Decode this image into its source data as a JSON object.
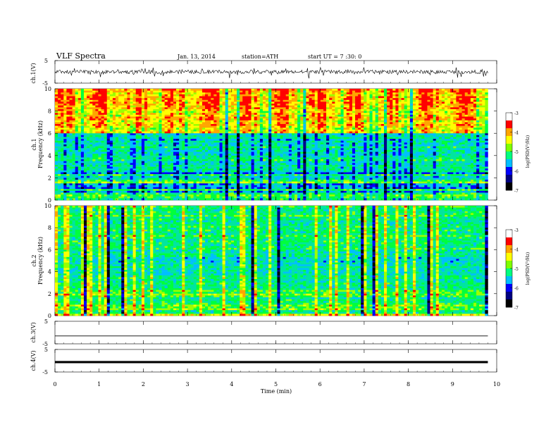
{
  "header": {
    "title": "VLF Spectra",
    "date": "Jan. 13, 2014",
    "station": "station=ATH",
    "start_time": "start UT = 7 :30: 0"
  },
  "colorbar": {
    "label": "log(PSD(V²/Hz)",
    "ticks": [
      "-3",
      "-4",
      "-5",
      "-6",
      "-7"
    ],
    "colors": [
      "#000000",
      "#000080",
      "#0000ff",
      "#00bfff",
      "#00ff7f",
      "#7fff00",
      "#ffff00",
      "#ffa500",
      "#ff0000",
      "#ffffff"
    ]
  },
  "chart_data": [
    {
      "type": "line",
      "panel": "ch1-waveform",
      "ylabel": "ch.1(V)",
      "ylim": [
        -5,
        5
      ],
      "yticks": [
        "5",
        "-5"
      ],
      "description_of_series": "noisy waveform around zero",
      "x": [
        0,
        0.5,
        1,
        1.5,
        2,
        2.5,
        3,
        3.5,
        4,
        4.5,
        5,
        5.5,
        6,
        6.5,
        7,
        7.5,
        8,
        8.5,
        9,
        9.5,
        9.8
      ],
      "y": [
        0.2,
        -0.5,
        0.3,
        -0.8,
        0.1,
        -0.4,
        0.5,
        -0.9,
        0.2,
        -0.3,
        0.6,
        -0.7,
        0.1,
        -0.2,
        0.4,
        -0.6,
        0.3,
        -0.5,
        0.2,
        -0.4,
        -0.1
      ]
    },
    {
      "type": "heatmap",
      "panel": "ch1-spectrogram",
      "ylabel_top": "ch.1",
      "ylabel": "Frequency (kHz)",
      "yticks": [
        "0",
        "2",
        "4",
        "6",
        "8",
        "10"
      ],
      "ylim": [
        0,
        10
      ],
      "xlim": [
        0,
        10
      ]
    },
    {
      "type": "heatmap",
      "panel": "ch2-spectrogram",
      "ylabel_top": "ch.2",
      "ylabel": "Frequency (kHz)",
      "yticks": [
        "0",
        "2",
        "4",
        "6",
        "8",
        "10"
      ],
      "ylim": [
        0,
        10
      ],
      "xlim": [
        0,
        10
      ]
    },
    {
      "type": "line",
      "panel": "ch3-waveform",
      "ylabel": "ch.3(V)",
      "ylim": [
        -5,
        5
      ],
      "yticks": [
        "5",
        "-5"
      ],
      "x": [
        0,
        9.8
      ],
      "y": [
        -2.5,
        -2.5
      ]
    },
    {
      "type": "line",
      "panel": "ch4-waveform",
      "ylabel": "ch.4(V)",
      "ylim": [
        -5,
        5
      ],
      "yticks": [
        "5",
        "-5"
      ],
      "x": [
        0,
        9.8
      ],
      "y": [
        -1,
        -1
      ]
    }
  ],
  "xaxis": {
    "label": "Time (min)",
    "ticks": [
      "0",
      "1",
      "2",
      "3",
      "4",
      "5",
      "6",
      "7",
      "8",
      "9",
      "10"
    ]
  }
}
